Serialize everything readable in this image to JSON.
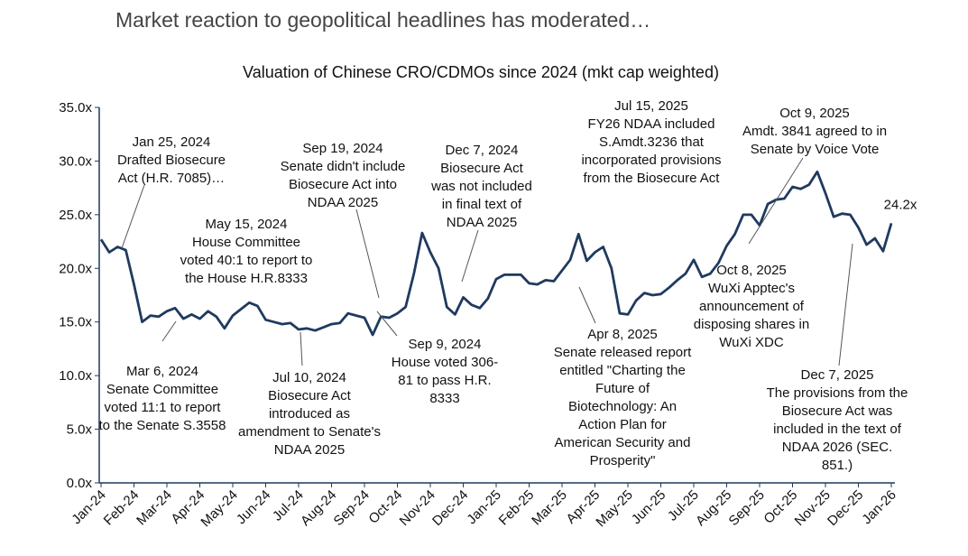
{
  "header": {
    "title": "Market reaction to geopolitical headlines has moderated…"
  },
  "chart_data": {
    "type": "line",
    "title": "Valuation of Chinese CRO/CDMOs since 2024 (mkt cap weighted)",
    "categories": [
      "Jan-24",
      null,
      null,
      null,
      "Feb-24",
      null,
      null,
      null,
      "Mar-24",
      null,
      null,
      null,
      "Apr-24",
      null,
      null,
      null,
      "May-24",
      null,
      null,
      null,
      "Jun-24",
      null,
      null,
      null,
      "Jul-24",
      null,
      null,
      null,
      "Aug-24",
      null,
      null,
      null,
      "Sep-24",
      null,
      null,
      null,
      "Oct-24",
      null,
      null,
      null,
      "Nov-24",
      null,
      null,
      null,
      "Dec-24",
      null,
      null,
      null,
      "Jan-25",
      null,
      null,
      null,
      "Feb-25",
      null,
      null,
      null,
      "Mar-25",
      null,
      null,
      null,
      "Apr-25",
      null,
      null,
      null,
      "May-25",
      null,
      null,
      null,
      "Jun-25",
      null,
      null,
      null,
      "Jul-25",
      null,
      null,
      null,
      "Aug-25",
      null,
      null,
      null,
      "Sep-25",
      null,
      null,
      null,
      "Oct-25",
      null,
      null,
      null,
      "Nov-25",
      null,
      null,
      null,
      "Dec-25",
      null,
      null,
      null,
      "Jan-26"
    ],
    "series": [
      {
        "color": "#1f3a5f",
        "values": [
          22.7,
          21.5,
          22.0,
          21.7,
          18.5,
          15.0,
          15.6,
          15.5,
          16.0,
          16.3,
          15.3,
          15.7,
          15.3,
          16.0,
          15.5,
          14.4,
          15.6,
          16.2,
          16.8,
          16.5,
          15.2,
          15.0,
          14.8,
          14.9,
          14.3,
          14.4,
          14.2,
          14.5,
          14.8,
          14.9,
          15.8,
          15.6,
          15.4,
          13.8,
          15.5,
          15.4,
          15.8,
          16.4,
          19.5,
          23.3,
          21.5,
          20.0,
          16.4,
          15.7,
          17.3,
          16.6,
          16.3,
          17.2,
          19.0,
          19.4,
          19.4,
          19.4,
          18.6,
          18.5,
          18.9,
          18.8,
          19.8,
          20.8,
          23.2,
          20.7,
          21.5,
          22.0,
          20.0,
          15.8,
          15.7,
          17.0,
          17.7,
          17.5,
          17.6,
          18.2,
          18.9,
          19.5,
          20.8,
          19.2,
          19.5,
          20.5,
          22.1,
          23.2,
          25.0,
          25.0,
          24.0,
          26.0,
          26.4,
          26.5,
          27.6,
          27.4,
          27.8,
          29.0,
          27.0,
          24.8,
          25.1,
          25.0,
          23.8,
          22.2,
          22.8,
          21.6,
          24.2
        ],
        "value_labels": [
          null,
          null,
          null,
          null,
          null,
          null,
          null,
          null,
          null,
          null,
          null,
          null,
          null,
          null,
          null,
          null,
          null,
          null,
          null,
          null,
          null,
          null,
          null,
          null,
          null,
          null,
          null,
          null,
          null,
          null,
          null,
          null,
          null,
          null,
          null,
          null,
          null,
          null,
          null,
          null,
          null,
          null,
          null,
          null,
          null,
          null,
          null,
          null,
          null,
          null,
          null,
          null,
          null,
          null,
          null,
          null,
          null,
          null,
          null,
          null,
          null,
          null,
          null,
          null,
          null,
          null,
          null,
          null,
          null,
          null,
          null,
          null,
          null,
          null,
          null,
          null,
          null,
          null,
          null,
          null,
          null,
          null,
          null,
          null,
          null,
          null,
          null,
          null,
          null,
          null,
          null,
          null,
          null,
          null,
          null,
          null,
          "24.2x"
        ]
      }
    ],
    "ylim": [
      0,
      35
    ],
    "yticks": [
      {
        "value": 0,
        "label": "0.0x"
      },
      {
        "value": 5,
        "label": "5.0x"
      },
      {
        "value": 10,
        "label": "10.0x"
      },
      {
        "value": 15,
        "label": "15.0x"
      },
      {
        "value": 20,
        "label": "20.0x"
      },
      {
        "value": 25,
        "label": "25.0x"
      },
      {
        "value": 30,
        "label": "30.0x"
      },
      {
        "value": 35,
        "label": "35.0x"
      }
    ],
    "annotations": [
      {
        "lines": [
          "Jan 25, 2024",
          "Drafted Biosecure",
          "Act (H.R. 7085)…"
        ]
      },
      {
        "lines": [
          "May 15, 2024",
          "House Committee",
          "voted 40:1 to report to",
          "the House H.R.8333"
        ]
      },
      {
        "lines": [
          "Sep 19, 2024",
          "Senate didn't include",
          "Biosecure Act into",
          "NDAA 2025"
        ]
      },
      {
        "lines": [
          "Dec 7, 2024",
          "Biosecure Act",
          "was not included",
          "in final text of",
          "NDAA 2025"
        ]
      },
      {
        "lines": [
          "Jul 15, 2025",
          "FY26 NDAA included",
          "S.Amdt.3236 that",
          "incorporated provisions",
          "from the Biosecure Act"
        ]
      },
      {
        "lines": [
          "Oct 9, 2025",
          "Amdt. 3841 agreed to in",
          "Senate by Voice Vote"
        ]
      },
      {
        "lines": [
          "Mar 6, 2024",
          "Senate Committee",
          "voted 11:1 to report",
          "to the Senate S.3558"
        ]
      },
      {
        "lines": [
          "Jul 10, 2024",
          "Biosecure Act",
          "introduced as",
          "amendment to Senate's",
          "NDAA 2025"
        ]
      },
      {
        "lines": [
          "Sep 9, 2024",
          "House voted 306-",
          "81 to pass H.R.",
          "8333"
        ]
      },
      {
        "lines": [
          "Apr 8, 2025",
          "Senate released report",
          "entitled \"Charting the",
          "Future of",
          "Biotechnology: An",
          "Action Plan for",
          "American Security and",
          "Prosperity\""
        ]
      },
      {
        "lines": [
          "Oct 8, 2025",
          "WuXi Apptec's",
          "announcement of",
          "disposing shares in",
          "WuXi XDC"
        ]
      },
      {
        "lines": [
          "Dec 7, 2025",
          "The provisions from the",
          "Biosecure Act was",
          "included in the text of",
          "NDAA 2026 (SEC.",
          "851.)"
        ]
      }
    ]
  }
}
